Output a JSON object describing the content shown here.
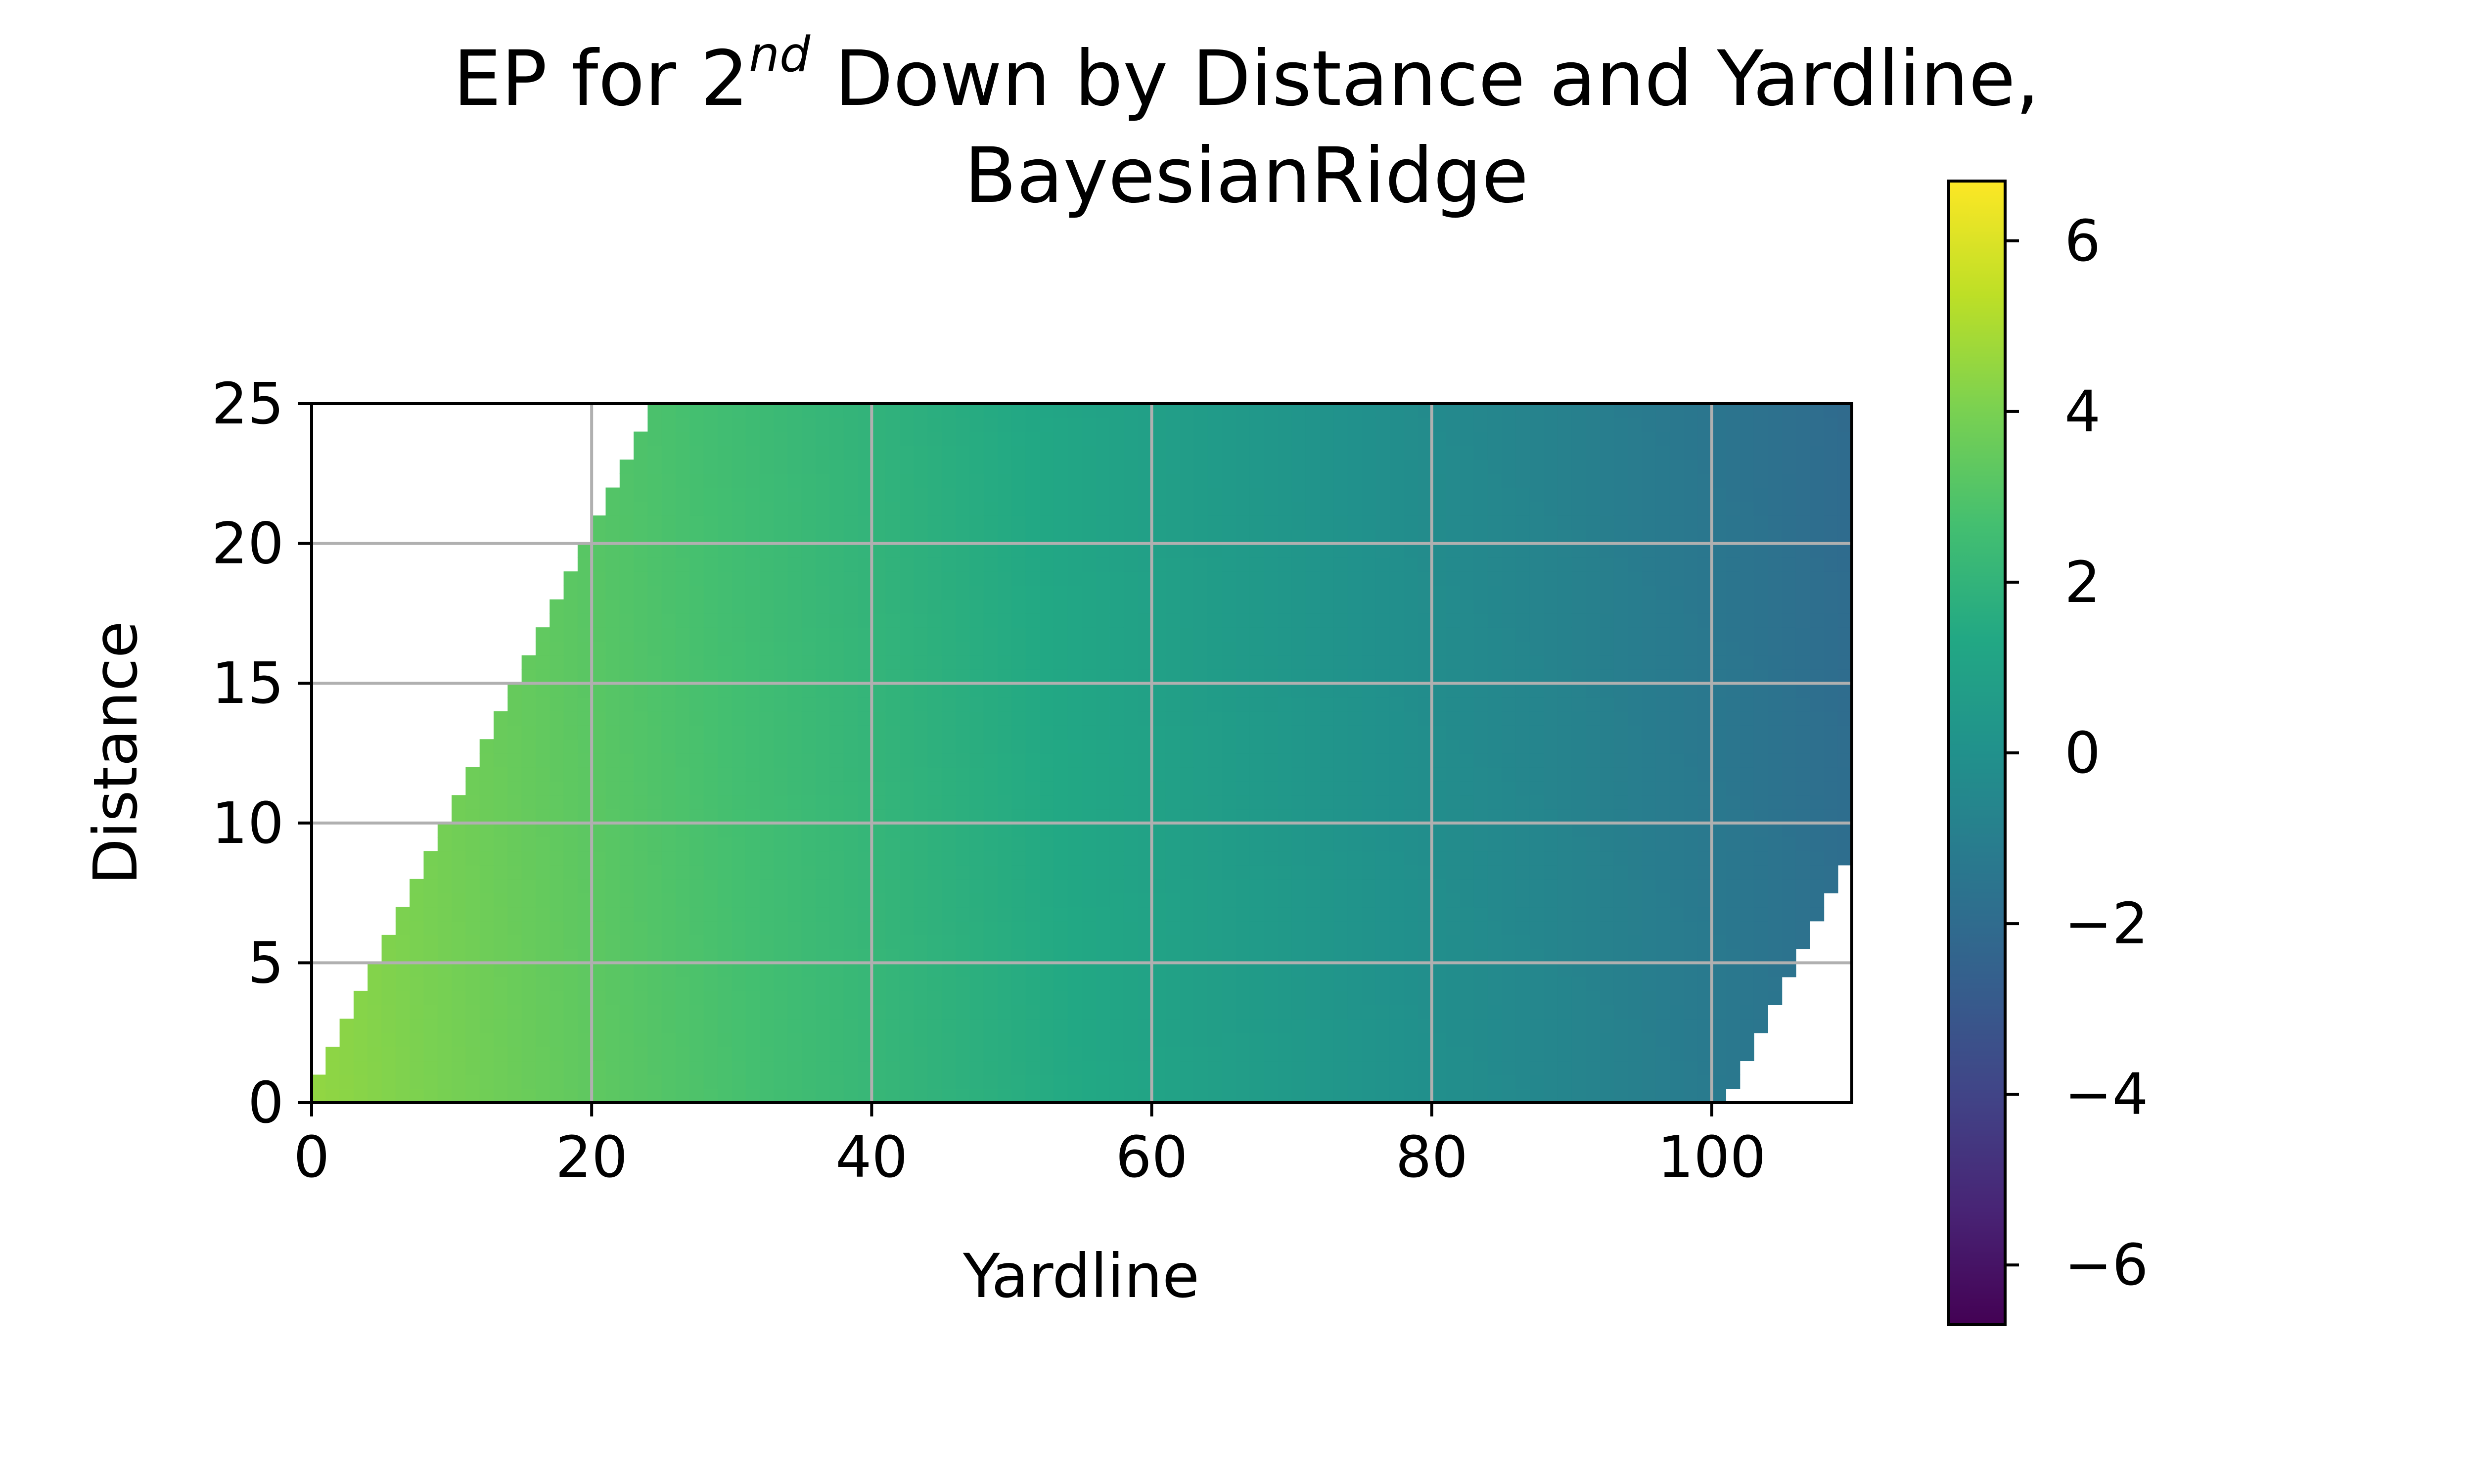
{
  "chart_data": {
    "type": "heatmap",
    "title_prefix": "EP for 2",
    "title_superscript": "nd",
    "title_suffix": " Down by Distance and Yardline,",
    "title_line2": "BayesianRidge",
    "xlabel": "Yardline",
    "ylabel": "Distance",
    "xlim": [
      0,
      110
    ],
    "ylim": [
      0,
      25
    ],
    "x_ticks": [
      "0",
      "20",
      "40",
      "60",
      "80",
      "100"
    ],
    "y_ticks": [
      "0",
      "5",
      "10",
      "15",
      "20",
      "25"
    ],
    "colorbar": {
      "colormap": "viridis",
      "range": [
        -6.7,
        6.7
      ],
      "ticks": [
        "6",
        "4",
        "2",
        "0",
        "−2",
        "−4",
        "−6"
      ]
    },
    "grid": true,
    "model": {
      "description_of_surface": "EP decreases linearly with yardline, nearly constant with distance",
      "ep_at_yardline_0": 4.5,
      "ep_at_yardline_110": -1.8,
      "valid_region": "distance <= yardline and yardline - distance <= 100"
    }
  }
}
